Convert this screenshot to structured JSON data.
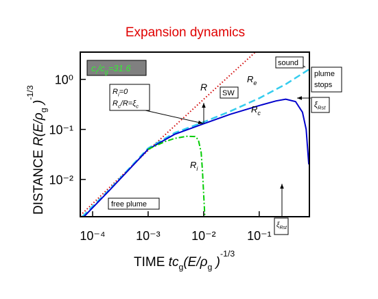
{
  "chart_data": {
    "type": "line",
    "title": "Expansion dynamics",
    "x_label": [
      "TIME ",
      "tc",
      "g",
      "(E/ρ",
      "g",
      " )",
      "-1/3"
    ],
    "y_label": [
      "DISTANCE  ",
      "R(E/ρ",
      "g",
      " )",
      "-1/3"
    ],
    "log_x": true,
    "log_y": true,
    "xlim": [
      6e-05,
      0.8
    ],
    "ylim": [
      0.0018,
      3.5
    ],
    "xticks": [
      {
        "value": 0.0001,
        "label": "10⁻⁴"
      },
      {
        "value": 0.001,
        "label": "10⁻³"
      },
      {
        "value": 0.01,
        "label": "10⁻²"
      },
      {
        "value": 0.1,
        "label": "10⁻¹"
      }
    ],
    "yticks": [
      {
        "value": 0.01,
        "label": "10⁻²"
      },
      {
        "value": 0.1,
        "label": "10⁻¹"
      },
      {
        "value": 1,
        "label": "10⁰"
      }
    ],
    "series": [
      {
        "name": "R",
        "color": "#d00000",
        "dash": "dotted",
        "x": [
          6e-05,
          0.001,
          0.01,
          0.085
        ],
        "values": [
          0.0019,
          0.038,
          0.4,
          3.5
        ]
      },
      {
        "name": "Re",
        "color": "#33ccee",
        "dash": "dashed",
        "x": [
          6.5e-05,
          0.0002,
          0.001,
          0.003,
          0.01,
          0.03,
          0.1,
          0.3,
          0.8
        ],
        "values": [
          0.0018,
          0.0062,
          0.042,
          0.085,
          0.14,
          0.23,
          0.42,
          0.8,
          1.6
        ]
      },
      {
        "name": "Rc",
        "color": "#0000cc",
        "dash": "solid",
        "x": [
          7e-05,
          0.0002,
          0.001,
          0.003,
          0.01,
          0.03,
          0.1,
          0.2,
          0.3,
          0.45,
          0.6,
          0.7,
          0.78
        ],
        "values": [
          0.0018,
          0.006,
          0.04,
          0.08,
          0.13,
          0.2,
          0.3,
          0.37,
          0.4,
          0.36,
          0.22,
          0.1,
          0.02
        ]
      },
      {
        "name": "Ri",
        "color": "#00cc00",
        "dash": "dashdot",
        "x": [
          0.001,
          0.002,
          0.003,
          0.005,
          0.007,
          0.008,
          0.009,
          0.0095,
          0.01,
          0.0105
        ],
        "values": [
          0.04,
          0.057,
          0.066,
          0.073,
          0.072,
          0.062,
          0.035,
          0.015,
          0.005,
          0.0018
        ]
      }
    ],
    "annotations": [
      [
        "R"
      ],
      [
        "R",
        "e"
      ],
      [
        "R",
        "c"
      ],
      [
        "R",
        "i"
      ],
      [
        "SW"
      ],
      [
        "sound"
      ],
      [
        "plume"
      ],
      [
        "stops"
      ],
      [
        "ξ",
        "Rst"
      ],
      [
        "R",
        "i",
        "=0"
      ],
      [
        "R",
        "c",
        "/R=ξ",
        "c"
      ],
      [
        "free plume"
      ],
      [
        "ξ",
        "Rst"
      ],
      [
        "c",
        "r",
        "/c",
        "g",
        "=31.6"
      ]
    ]
  }
}
